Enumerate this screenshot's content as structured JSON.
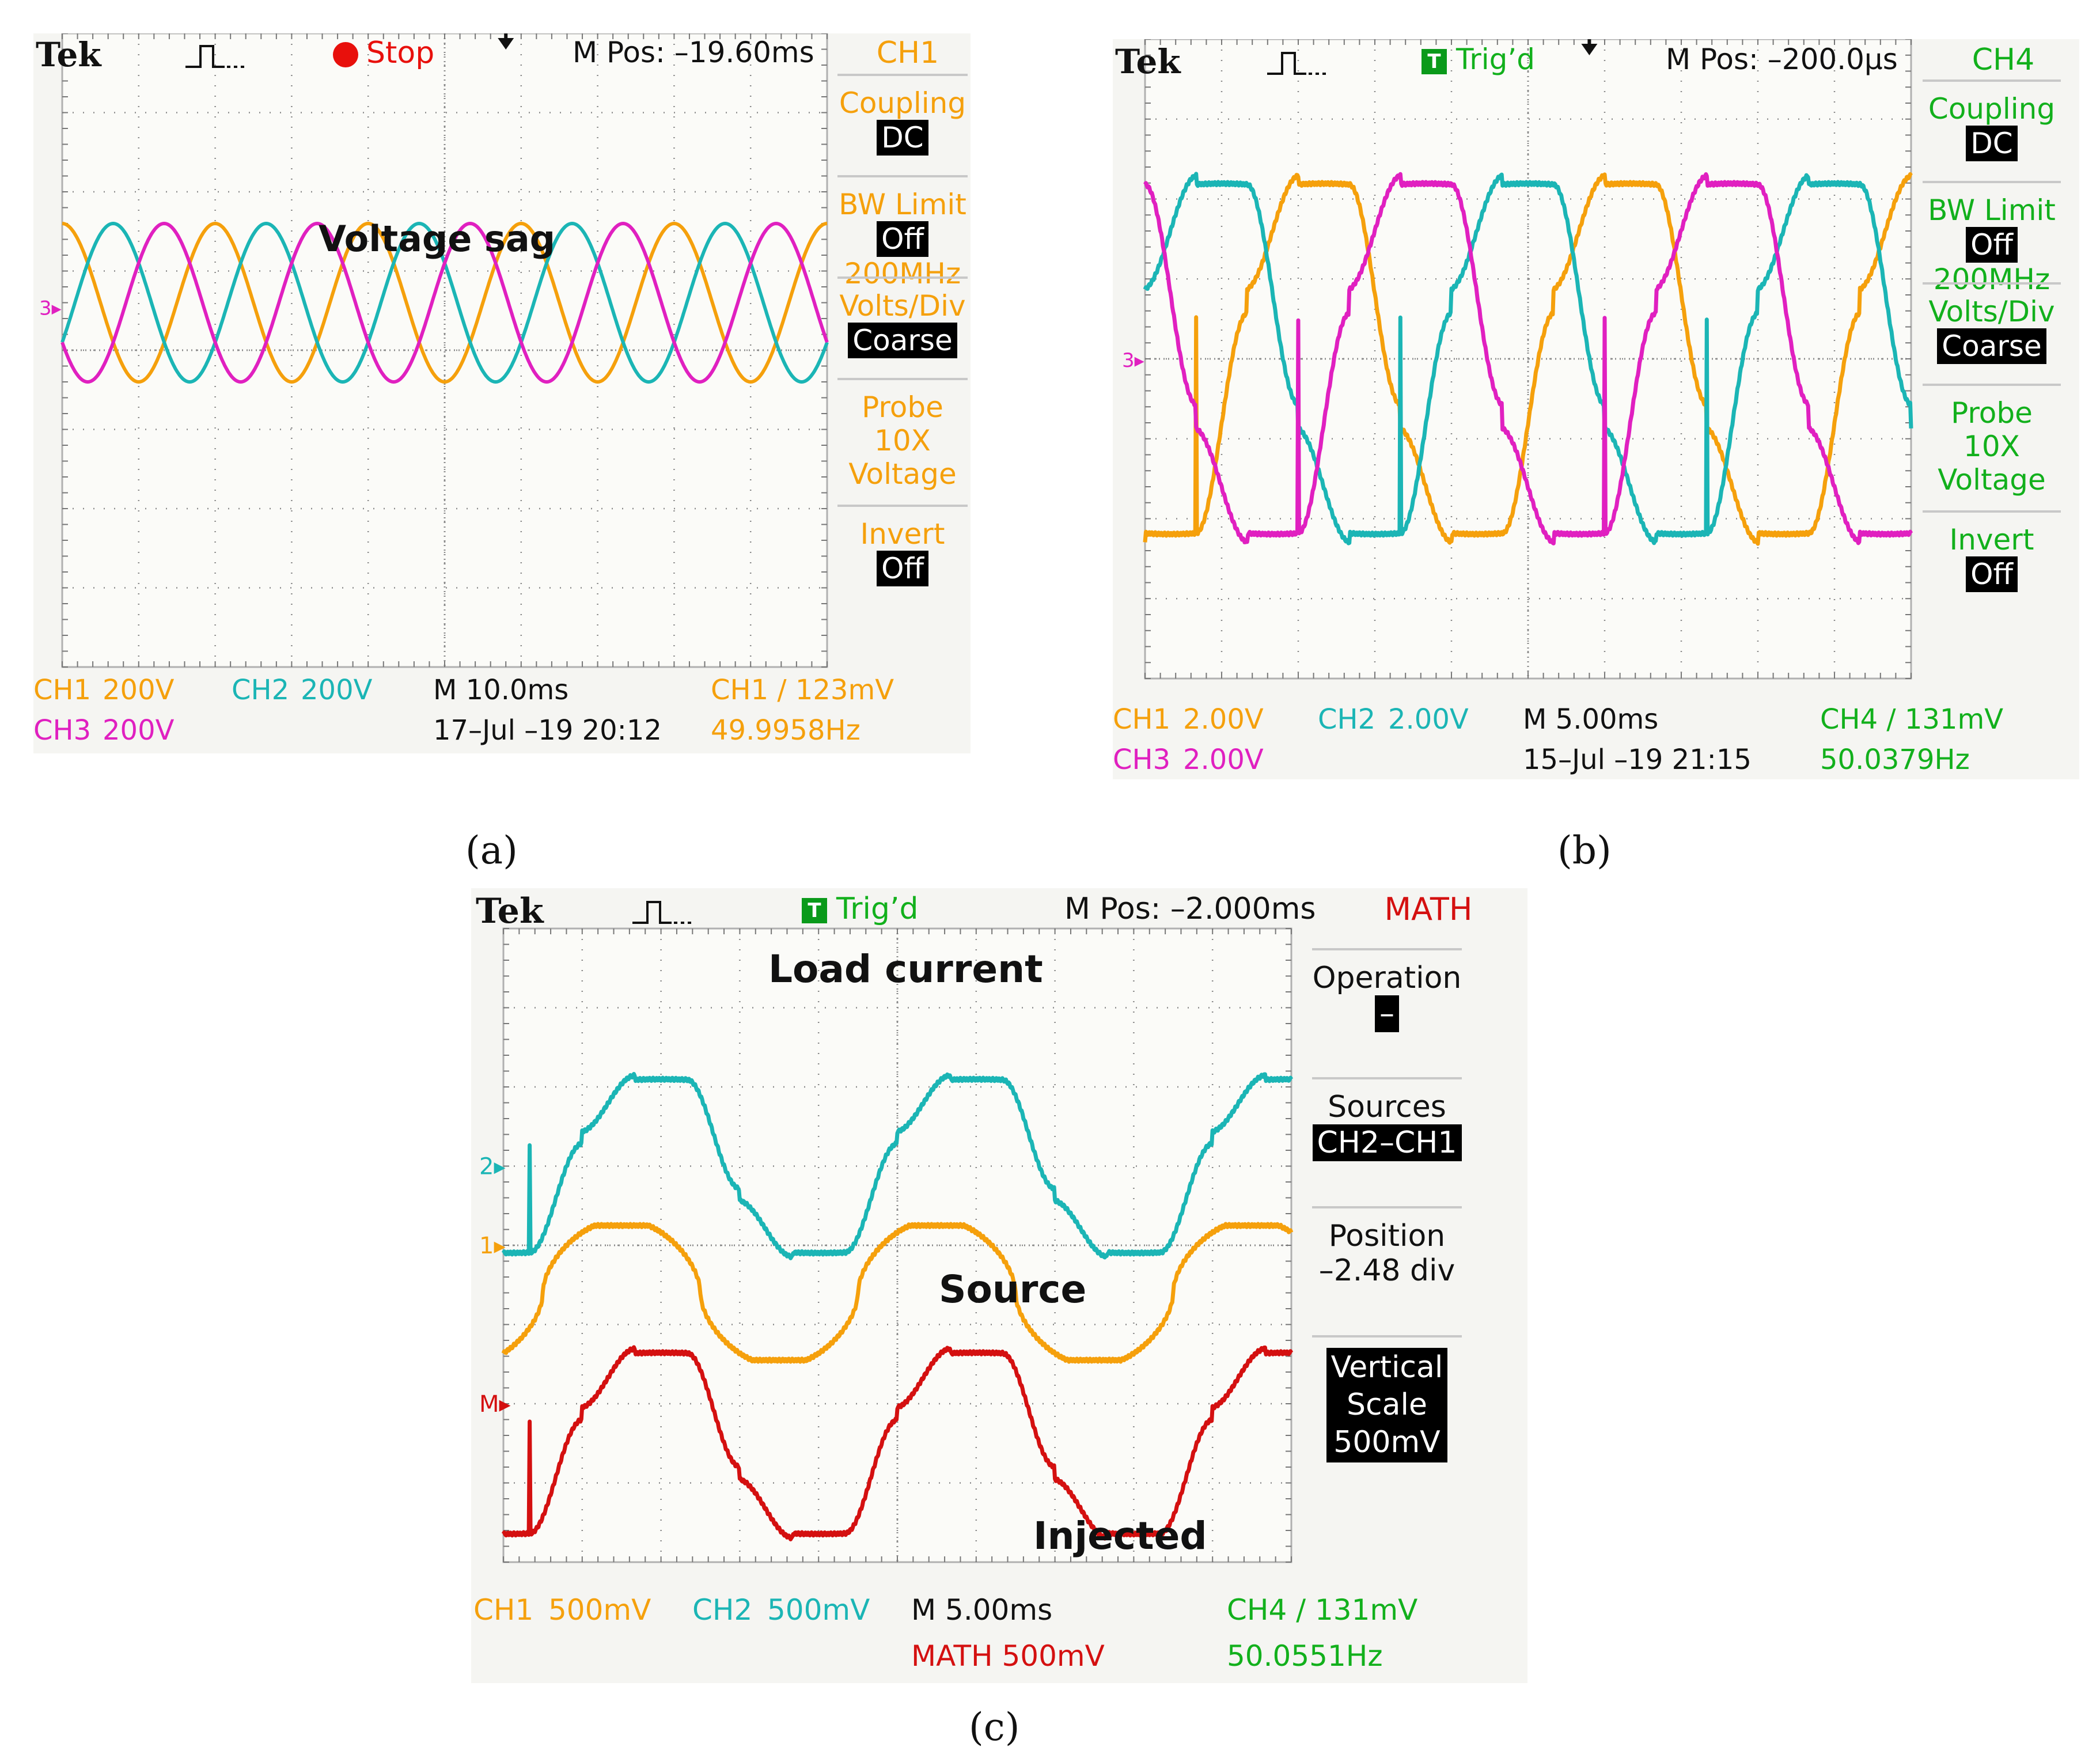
{
  "captions": {
    "a": "(a)",
    "b": "(b)",
    "c": "(c)"
  },
  "colors": {
    "ch1": "#f5a00c",
    "ch2": "#1bb5b5",
    "ch3": "#e020c0",
    "math": "#d41010",
    "ch4_green": "#12b01c",
    "grid": "#8a8a8a"
  },
  "chart_data": [
    {
      "id": "a",
      "type": "line",
      "brand": "Tek",
      "acq_status": "Stop",
      "m_pos": "M Pos: –19.60ms",
      "menu_title": "CH1",
      "menu": [
        {
          "label": "Coupling",
          "value": "DC"
        },
        {
          "label": "BW Limit",
          "value": "Off",
          "extra": "200MHz"
        },
        {
          "label": "Volts/Div",
          "value": "Coarse"
        },
        {
          "label": "Probe",
          "lines": [
            "10X",
            "Voltage"
          ]
        },
        {
          "label": "Invert",
          "value": "Off"
        }
      ],
      "annotation": "Voltage sag",
      "marker": "3",
      "footer": {
        "ch1": "CH1",
        "ch1_scale": "200V",
        "ch2": "CH2",
        "ch2_scale": "200V",
        "ch3": "CH3",
        "ch3_scale": "200V",
        "timebase": "M 10.0ms",
        "date": "17–Jul –19 20:12",
        "trigger": "CH1 ∕ 123mV",
        "freq": "49.9958Hz"
      },
      "x_div": 10,
      "y_div": 8,
      "series": [
        {
          "channel": "CH1",
          "shape": "sine",
          "amplitude_div": 1.0,
          "offset_div": 0.6,
          "cycles": 5.0,
          "phase_deg": 90
        },
        {
          "channel": "CH2",
          "shape": "sine",
          "amplitude_div": 1.0,
          "offset_div": 0.6,
          "cycles": 5.0,
          "phase_deg": -30
        },
        {
          "channel": "CH3",
          "shape": "sine",
          "amplitude_div": 1.0,
          "offset_div": 0.6,
          "cycles": 5.0,
          "phase_deg": 210
        }
      ]
    },
    {
      "id": "b",
      "type": "line",
      "brand": "Tek",
      "acq_status": "Trig’d",
      "trig_letter": "T",
      "m_pos": "M Pos: –200.0μs",
      "menu_title": "CH4",
      "menu": [
        {
          "label": "Coupling",
          "value": "DC"
        },
        {
          "label": "BW Limit",
          "value": "Off",
          "extra": "200MHz"
        },
        {
          "label": "Volts/Div",
          "value": "Coarse"
        },
        {
          "label": "Probe",
          "lines": [
            "10X",
            "Voltage"
          ]
        },
        {
          "label": "Invert",
          "value": "Off"
        }
      ],
      "marker": "3",
      "footer": {
        "ch1": "CH1",
        "ch1_scale": "2.00V",
        "ch2": "CH2",
        "ch2_scale": "2.00V",
        "ch3": "CH3",
        "ch3_scale": "2.00V",
        "timebase": "M 5.00ms",
        "date": "15–Jul –19 21:15",
        "trigger": "CH4 ∕ 131mV",
        "freq": "50.0379Hz"
      },
      "x_div": 10,
      "y_div": 8,
      "series": [
        {
          "channel": "CH1",
          "shape": "stepped",
          "amplitude_div": 2.3,
          "offset_div": 0,
          "cycles": 2.5,
          "phase_deg": 240
        },
        {
          "channel": "CH2",
          "shape": "stepped",
          "amplitude_div": 2.3,
          "offset_div": 0,
          "cycles": 2.5,
          "phase_deg": 0
        },
        {
          "channel": "CH3",
          "shape": "stepped",
          "amplitude_div": 2.3,
          "offset_div": 0,
          "cycles": 2.5,
          "phase_deg": 120
        }
      ]
    },
    {
      "id": "c",
      "type": "line",
      "brand": "Tek",
      "acq_status": "Trig’d",
      "trig_letter": "T",
      "m_pos": "M Pos: –2.000ms",
      "menu_title": "MATH",
      "menu": [
        {
          "label": "Operation",
          "value": "–"
        },
        {
          "label": "Sources",
          "value": "CH2–CH1"
        },
        {
          "label": "Position",
          "lines": [
            "–2.48 div"
          ]
        },
        {
          "label": "",
          "boxed_lines": [
            "Vertical",
            "Scale",
            "500mV"
          ]
        }
      ],
      "annotations": [
        {
          "text": "Load current"
        },
        {
          "text": "Source"
        },
        {
          "text": "Injected"
        }
      ],
      "markers": [
        {
          "text": "2"
        },
        {
          "text": "1"
        },
        {
          "text": "M"
        }
      ],
      "footer": {
        "ch1": "CH1",
        "ch1_scale": "500mV",
        "ch2": "CH2",
        "ch2_scale": "500mV",
        "math": "MATH 500mV",
        "timebase": "M 5.00ms",
        "trigger": "CH4 ∕ 131mV",
        "freq": "50.0551Hz"
      },
      "x_div": 10,
      "y_div": 8,
      "series": [
        {
          "channel": "CH2",
          "name": "Load current",
          "shape": "stepped",
          "amplitude_div": 1.15,
          "offset_div": 1.0,
          "cycles": 2.5,
          "phase_deg": -90
        },
        {
          "channel": "CH1",
          "name": "Source",
          "shape": "flat-sine",
          "amplitude_div": 0.85,
          "offset_div": -0.6,
          "cycles": 2.5,
          "phase_deg": -45
        },
        {
          "channel": "MATH",
          "name": "Injected",
          "shape": "stepped",
          "amplitude_div": 1.2,
          "offset_div": -2.5,
          "cycles": 2.5,
          "phase_deg": -90
        }
      ]
    }
  ]
}
